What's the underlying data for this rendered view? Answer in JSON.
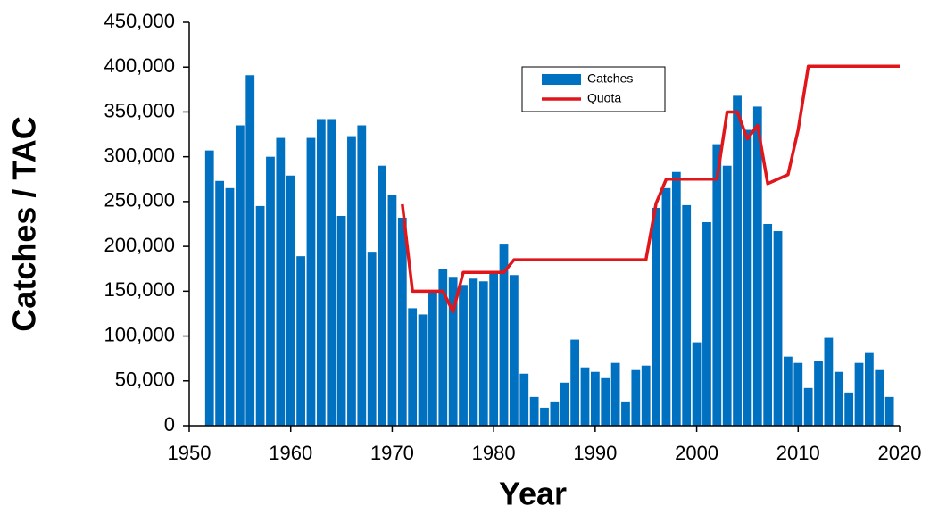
{
  "chart_data": {
    "type": "bar-line",
    "xlabel": "Year",
    "ylabel": "Catches / TAC",
    "xlim": [
      1950,
      2020
    ],
    "xticks": [
      1950,
      1960,
      1970,
      1980,
      1990,
      2000,
      2010,
      2020
    ],
    "ylim": [
      0,
      450000
    ],
    "yticks": [
      0,
      {
        "value": 50000,
        "label": "50,000"
      },
      {
        "value": 100000,
        "label": "100,000"
      },
      {
        "value": 150000,
        "label": "150,000"
      },
      {
        "value": 200000,
        "label": "200,000"
      },
      {
        "value": 250000,
        "label": "250,000"
      },
      {
        "value": 300000,
        "label": "300,000"
      },
      {
        "value": 350000,
        "label": "350,000"
      },
      {
        "value": 400000,
        "label": "400,000"
      },
      {
        "value": 450000,
        "label": "450,000"
      }
    ],
    "series": [
      {
        "name": "Catches",
        "type": "bar",
        "color": "#0070c0",
        "x": [
          1952,
          1953,
          1954,
          1955,
          1956,
          1957,
          1958,
          1959,
          1960,
          1961,
          1962,
          1963,
          1964,
          1965,
          1966,
          1967,
          1968,
          1969,
          1970,
          1971,
          1972,
          1973,
          1974,
          1975,
          1976,
          1977,
          1978,
          1979,
          1980,
          1981,
          1982,
          1983,
          1984,
          1985,
          1986,
          1987,
          1988,
          1989,
          1990,
          1991,
          1992,
          1993,
          1994,
          1995,
          1996,
          1997,
          1998,
          1999,
          2000,
          2001,
          2002,
          2003,
          2004,
          2005,
          2006,
          2007,
          2008,
          2009,
          2010,
          2011,
          2012,
          2013,
          2014,
          2015,
          2016,
          2017,
          2018,
          2019
        ],
        "values": [
          307000,
          273000,
          265000,
          335000,
          391000,
          245000,
          300000,
          321000,
          279000,
          189000,
          321000,
          342000,
          342000,
          234000,
          323000,
          335000,
          194000,
          290000,
          257000,
          232000,
          131000,
          124000,
          150000,
          175000,
          166000,
          157000,
          164000,
          161000,
          170000,
          203000,
          168000,
          58000,
          32000,
          20000,
          27000,
          48000,
          96000,
          65000,
          60000,
          53000,
          70000,
          27000,
          62000,
          67000,
          243000,
          265000,
          283000,
          246000,
          93000,
          227000,
          314000,
          290000,
          368000,
          330000,
          356000,
          225000,
          217000,
          77000,
          70000,
          42000,
          72000,
          98000,
          60000,
          37000,
          70000,
          81000,
          62000,
          32000
        ]
      },
      {
        "name": "Quota",
        "type": "line",
        "color": "#e0161b",
        "x": [
          1971,
          1972,
          1973,
          1974,
          1975,
          1976,
          1977,
          1978,
          1979,
          1980,
          1981,
          1982,
          1983,
          1984,
          1985,
          1986,
          1987,
          1988,
          1989,
          1990,
          1991,
          1992,
          1993,
          1994,
          1995,
          1996,
          1997,
          1998,
          1999,
          2000,
          2001,
          2002,
          2003,
          2004,
          2005,
          2006,
          2007,
          2008,
          2009,
          2010,
          2011,
          2012,
          2013,
          2014,
          2015,
          2016,
          2017,
          2018,
          2019,
          2020
        ],
        "values": [
          247000,
          150000,
          150000,
          150000,
          150000,
          127000,
          171000,
          171000,
          171000,
          171000,
          171000,
          185000,
          185000,
          185000,
          185000,
          185000,
          185000,
          185000,
          185000,
          185000,
          185000,
          185000,
          185000,
          185000,
          185000,
          248000,
          275000,
          275000,
          275000,
          275000,
          275000,
          275000,
          350000,
          350000,
          320000,
          335000,
          270000,
          275000,
          280000,
          330000,
          401000,
          401000,
          401000,
          401000,
          401000,
          401000,
          401000,
          401000,
          401000,
          401000
        ]
      }
    ]
  }
}
